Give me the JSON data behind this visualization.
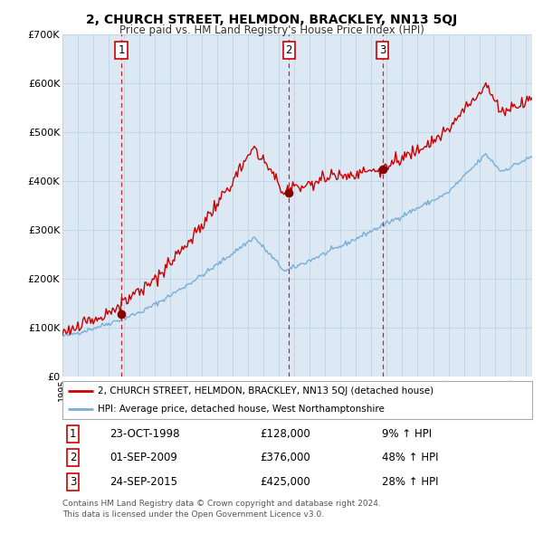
{
  "title": "2, CHURCH STREET, HELMDON, BRACKLEY, NN13 5QJ",
  "subtitle": "Price paid vs. HM Land Registry's House Price Index (HPI)",
  "hpi_line_color": "#7aaed6",
  "price_line_color": "#cc0000",
  "bg_color": "#dce9f5",
  "grid_color": "#b8cfe0",
  "transaction_dates": [
    "1998-10-23",
    "2009-09-01",
    "2015-09-24"
  ],
  "transaction_prices": [
    128000,
    376000,
    425000
  ],
  "transaction_labels": [
    "1",
    "2",
    "3"
  ],
  "transaction_info": [
    {
      "num": "1",
      "date": "23-OCT-1998",
      "price": "£128,000",
      "hpi": "9% ↑ HPI"
    },
    {
      "num": "2",
      "date": "01-SEP-2009",
      "price": "£376,000",
      "hpi": "48% ↑ HPI"
    },
    {
      "num": "3",
      "date": "24-SEP-2015",
      "price": "£425,000",
      "hpi": "28% ↑ HPI"
    }
  ],
  "legend_line1": "2, CHURCH STREET, HELMDON, BRACKLEY, NN13 5QJ (detached house)",
  "legend_line2": "HPI: Average price, detached house, West Northamptonshire",
  "footer1": "Contains HM Land Registry data © Crown copyright and database right 2024.",
  "footer2": "This data is licensed under the Open Government Licence v3.0.",
  "ymin": 0,
  "ymax": 700000,
  "yticks": [
    0,
    100000,
    200000,
    300000,
    400000,
    500000,
    600000,
    700000
  ],
  "ytick_labels": [
    "£0",
    "£100K",
    "£200K",
    "£300K",
    "£400K",
    "£500K",
    "£600K",
    "£700K"
  ]
}
